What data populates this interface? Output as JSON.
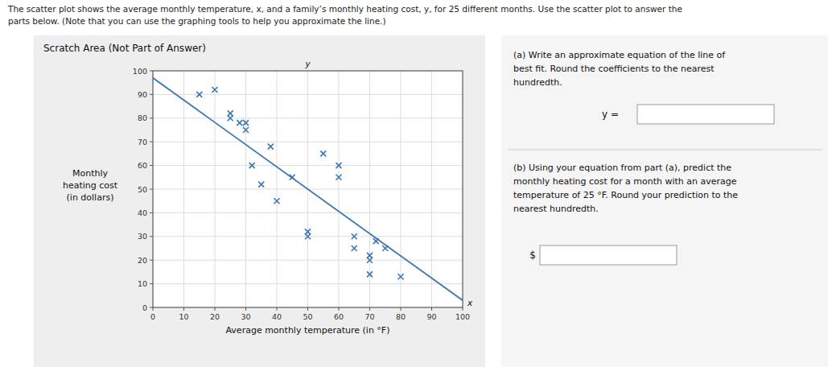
{
  "chart_data": {
    "type": "scatter",
    "title": "Scratch Area (Not Part of Answer)",
    "xlabel": "Average monthly temperature (in °F)",
    "ylabel": [
      "Monthly",
      "heating cost",
      "(in dollars)"
    ],
    "series": [
      {
        "type": "scatter",
        "color": "#3a78b5",
        "marker": "x",
        "x": [
          15,
          20,
          25,
          25,
          28,
          30,
          30,
          32,
          35,
          38,
          40,
          45,
          50,
          50,
          55,
          60,
          60,
          65,
          65,
          70,
          70,
          70,
          72,
          75,
          80
        ],
        "values": [
          90,
          92,
          80,
          82,
          78,
          78,
          75,
          60,
          52,
          68,
          45,
          55,
          30,
          32,
          65,
          60,
          55,
          30,
          25,
          22,
          20,
          14,
          28,
          25,
          13
        ]
      },
      {
        "type": "line",
        "color": "#3a78b5",
        "line_style": "solid",
        "x": [
          0,
          100
        ],
        "values": [
          97,
          3
        ]
      }
    ],
    "xlim": [
      0,
      100
    ],
    "ylim": [
      0,
      100
    ],
    "xticks": [
      0,
      10,
      20,
      30,
      40,
      50,
      60,
      70,
      80,
      90,
      100
    ],
    "yticks": [
      0,
      10,
      20,
      30,
      40,
      50,
      60,
      70,
      80,
      90,
      100
    ],
    "grid": true,
    "annotations": [
      "The scatter plot shows the average monthly temperature, x, and a family’s monthly heating cost, y, for 25 different months. Use the scatter plot to answer the",
      "parts below. (Note that you can use the graphing tools to help you approximate the line.)",
      "y",
      "x",
      "(a) Write an approximate equation of the line of\nbest fit. Round the coefficients to the nearest\nhundredth.",
      "y =",
      "(b) Using your equation from part (a), predict the\nmonthly heating cost for a month with an average\ntemperature of 25 °F. Round your prediction to the\nnearest hundredth.",
      "$"
    ]
  }
}
